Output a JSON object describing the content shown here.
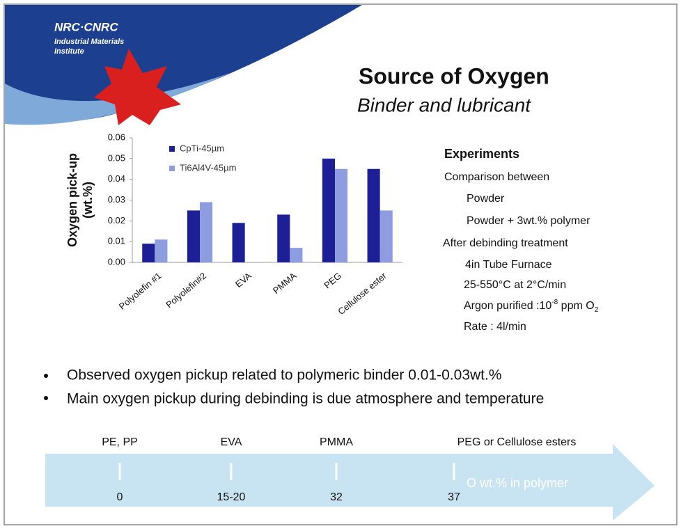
{
  "logo": {
    "name": "NRC·CNRC",
    "lines": [
      "Industrial Materials",
      "Institute"
    ]
  },
  "title": "Source of Oxygen",
  "subtitle": "Binder and lubricant",
  "chart_data": {
    "type": "bar",
    "ylabel": [
      "Oxygen pick-up",
      "(wt.%)"
    ],
    "categories": [
      "Polyolefin #1",
      "Polyolefin#2",
      "EVA",
      "PMMA",
      "PEG",
      "Cellulose ester"
    ],
    "series": [
      {
        "name": "CpTi-45µm",
        "color": "#1c1f96",
        "values": [
          0.009,
          0.025,
          0.019,
          0.023,
          0.05,
          0.045
        ]
      },
      {
        "name": "Ti6Al4V-45µm",
        "color": "#8e9ce0",
        "values": [
          0.011,
          0.029,
          null,
          0.007,
          0.045,
          0.025
        ]
      }
    ],
    "ylim": [
      0,
      0.06
    ],
    "yticks": [
      {
        "value": 0,
        "label": "0.00"
      },
      0.01,
      0.02,
      0.03,
      0.04,
      0.05,
      0.06
    ],
    "legend": "top-left"
  },
  "experiments": {
    "heading": "Experiments",
    "groups": [
      {
        "label": "Comparison between",
        "items": [
          "Powder",
          "Powder + 3wt.% polymer"
        ]
      },
      {
        "label": "After debinding treatment",
        "items": [
          "4in Tube Furnace",
          "25-550°C at 2°C/min",
          {
            "text": "Argon purified :10",
            "sup": "-8",
            "text2": " ppm O",
            "sub": "2"
          },
          "Rate : 4l/min"
        ]
      }
    ]
  },
  "bullets": [
    "Observed oxygen pickup related to polymeric binder 0.01-0.03wt.%",
    "Main oxygen pickup during debinding is due atmosphere and temperature"
  ],
  "timeline": {
    "caption": "O wt.% in polymer",
    "items": [
      {
        "label": "PE, PP",
        "value": "0"
      },
      {
        "label": "EVA",
        "value": "15-20"
      },
      {
        "label": "PMMA",
        "value": "32"
      },
      {
        "label": "PEG or Cellulose esters",
        "value": "37"
      }
    ]
  }
}
